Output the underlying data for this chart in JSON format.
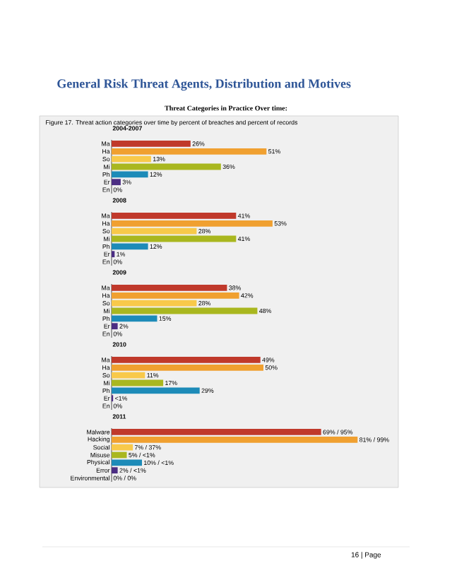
{
  "chart_data": [
    {
      "type": "other",
      "title": "General Risk Threat Agents, Distribution and Motives",
      "subtitle": "Threat Categories in Practice Over time:",
      "annotations": [
        "Figure 17. Threat action categories over time by percent of breaches and percent of records",
        "16 | Page"
      ]
    },
    {
      "type": "bar",
      "orientation": "horizontal",
      "title": "2004-2007",
      "categories": [
        "Ma",
        "Ha",
        "So",
        "Mi",
        "Ph",
        "Er",
        "En"
      ],
      "values": [
        26,
        51,
        13,
        36,
        12,
        3,
        0
      ],
      "colors": [
        "#c0392b",
        "#f0a030",
        "#f8c94a",
        "#a9b71f",
        "#1d8bb8",
        "#4b2d83",
        "#999999"
      ],
      "value_labels": [
        "26%",
        "51%",
        "13%",
        "36%",
        "12%",
        "3%",
        "0%"
      ],
      "tick_labels": "y"
    },
    {
      "type": "bar",
      "orientation": "horizontal",
      "title": "2008",
      "categories": [
        "Ma",
        "Ha",
        "So",
        "Mi",
        "Ph",
        "Er",
        "En"
      ],
      "values": [
        41,
        53,
        28,
        41,
        12,
        1,
        0
      ],
      "colors": [
        "#c0392b",
        "#f0a030",
        "#f8c94a",
        "#a9b71f",
        "#1d8bb8",
        "#4b2d83",
        "#999999"
      ],
      "value_labels": [
        "41%",
        "53%",
        "28%",
        "41%",
        "12%",
        "1%",
        "0%"
      ],
      "tick_labels": "y"
    },
    {
      "type": "bar",
      "orientation": "horizontal",
      "title": "2009",
      "categories": [
        "Ma",
        "Ha",
        "So",
        "Mi",
        "Ph",
        "Er",
        "En"
      ],
      "values": [
        38,
        42,
        28,
        48,
        15,
        2,
        0
      ],
      "colors": [
        "#c0392b",
        "#f0a030",
        "#f8c94a",
        "#a9b71f",
        "#1d8bb8",
        "#4b2d83",
        "#999999"
      ],
      "value_labels": [
        "38%",
        "42%",
        "28%",
        "48%",
        "15%",
        "2%",
        "0%"
      ],
      "tick_labels": "y"
    },
    {
      "type": "bar",
      "orientation": "horizontal",
      "title": "2010",
      "categories": [
        "Ma",
        "Ha",
        "So",
        "Mi",
        "Ph",
        "Er",
        "En"
      ],
      "values": [
        49,
        50,
        11,
        17,
        29,
        0.5,
        0
      ],
      "colors": [
        "#c0392b",
        "#f0a030",
        "#f8c94a",
        "#a9b71f",
        "#1d8bb8",
        "#4b2d83",
        "#999999"
      ],
      "value_labels": [
        "49%",
        "50%",
        "11%",
        "17%",
        "29%",
        "<1%",
        "0%"
      ],
      "tick_labels": "y"
    },
    {
      "type": "bar",
      "orientation": "horizontal",
      "title": "2011",
      "categories": [
        "Malware",
        "Hacking",
        "Social",
        "Misuse",
        "Physical",
        "Error",
        "Environmental"
      ],
      "values": [
        69,
        81,
        7,
        5,
        10,
        2,
        0
      ],
      "colors": [
        "#c0392b",
        "#f0a030",
        "#f8c94a",
        "#a9b71f",
        "#1d8bb8",
        "#4b2d83",
        "#999999"
      ],
      "value_labels": [
        "69% / 95%",
        "81% / 99%",
        "7% / 37%",
        "5% / <1%",
        "10% / <1%",
        "2% / <1%",
        "0% / 0%"
      ],
      "tick_labels": "y"
    }
  ]
}
